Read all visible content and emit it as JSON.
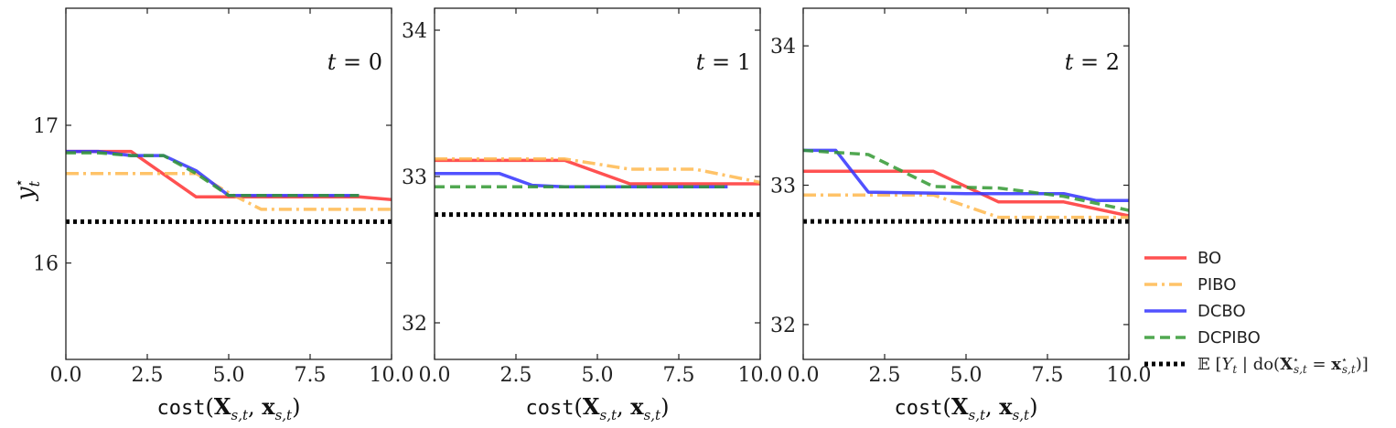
{
  "chart_data": [
    {
      "type": "line",
      "panel_label": "t = 0",
      "xlabel": "cost(X_{s,t}, x_{s,t})",
      "ylabel": "y_t*",
      "xlim": [
        0,
        10
      ],
      "ylim": [
        15.3,
        17.85
      ],
      "xticks": [
        0,
        2.5,
        5,
        7.5,
        10
      ],
      "xtick_labels": [
        "0.0",
        "2.5",
        "5.0",
        "7.5",
        "10.0"
      ],
      "yticks": [
        16,
        17
      ],
      "ytick_labels": [
        "16",
        "17"
      ],
      "grid": false,
      "series": [
        {
          "name": "BO",
          "x": [
            0,
            2,
            4,
            5,
            9,
            10
          ],
          "y": [
            16.81,
            16.81,
            16.48,
            16.48,
            16.48,
            16.46
          ]
        },
        {
          "name": "PIBO",
          "x": [
            0,
            4,
            5,
            6,
            10
          ],
          "y": [
            16.65,
            16.65,
            16.51,
            16.39,
            16.39
          ]
        },
        {
          "name": "DCBO",
          "x": [
            0,
            1,
            2,
            3,
            4,
            5,
            9
          ],
          "y": [
            16.81,
            16.81,
            16.78,
            16.78,
            16.67,
            16.49,
            16.49
          ]
        },
        {
          "name": "DCPIBO",
          "x": [
            0,
            1,
            2,
            3,
            4,
            5,
            9
          ],
          "y": [
            16.8,
            16.8,
            16.78,
            16.78,
            16.65,
            16.49,
            16.49
          ]
        },
        {
          "name": "E[Y_t | do(X*_{s,t} = x*_{s,t})]",
          "x": [
            0,
            10
          ],
          "y": [
            16.3,
            16.3
          ]
        }
      ]
    },
    {
      "type": "line",
      "panel_label": "t = 1",
      "xlabel": "cost(X_{s,t}, x_{s,t})",
      "ylabel": "",
      "xlim": [
        0,
        10
      ],
      "ylim": [
        31.75,
        34.15
      ],
      "xticks": [
        0,
        2.5,
        5,
        7.5,
        10
      ],
      "xtick_labels": [
        "0.0",
        "2.5",
        "5.0",
        "7.5",
        "10.0"
      ],
      "yticks": [
        32,
        33,
        34
      ],
      "ytick_labels": [
        "32",
        "33",
        "34"
      ],
      "grid": false,
      "series": [
        {
          "name": "BO",
          "x": [
            0,
            4,
            6,
            10
          ],
          "y": [
            33.11,
            33.11,
            32.95,
            32.95
          ]
        },
        {
          "name": "PIBO",
          "x": [
            0,
            4,
            6,
            8,
            10
          ],
          "y": [
            33.12,
            33.12,
            33.05,
            33.05,
            32.96
          ]
        },
        {
          "name": "DCBO",
          "x": [
            0,
            2,
            3,
            4,
            9
          ],
          "y": [
            33.02,
            33.02,
            32.94,
            32.93,
            32.93
          ]
        },
        {
          "name": "DCPIBO",
          "x": [
            0,
            9
          ],
          "y": [
            32.93,
            32.93
          ]
        },
        {
          "name": "E[Y_t | do(X*_{s,t} = x*_{s,t})]",
          "x": [
            0,
            10
          ],
          "y": [
            32.74,
            32.74
          ]
        }
      ]
    },
    {
      "type": "line",
      "panel_label": "t = 2",
      "xlabel": "cost(X_{s,t}, x_{s,t})",
      "ylabel": "",
      "xlim": [
        0,
        10
      ],
      "ylim": [
        31.75,
        34.27
      ],
      "xticks": [
        0,
        2.5,
        5,
        7.5,
        10
      ],
      "xtick_labels": [
        "0.0",
        "2.5",
        "5.0",
        "7.5",
        "10.0"
      ],
      "yticks": [
        32,
        33,
        34
      ],
      "ytick_labels": [
        "32",
        "33",
        "34"
      ],
      "grid": false,
      "series": [
        {
          "name": "BO",
          "x": [
            0,
            4,
            6,
            8,
            10
          ],
          "y": [
            33.1,
            33.1,
            32.88,
            32.88,
            32.78
          ]
        },
        {
          "name": "PIBO",
          "x": [
            0,
            4,
            6,
            10
          ],
          "y": [
            32.93,
            32.93,
            32.77,
            32.77
          ]
        },
        {
          "name": "DCBO",
          "x": [
            0,
            1,
            2,
            5,
            8,
            9,
            10
          ],
          "y": [
            33.25,
            33.25,
            32.95,
            32.94,
            32.94,
            32.89,
            32.89
          ]
        },
        {
          "name": "DCPIBO",
          "x": [
            0,
            2,
            4,
            6,
            8,
            10
          ],
          "y": [
            33.25,
            33.22,
            32.99,
            32.98,
            32.92,
            32.82
          ]
        },
        {
          "name": "E[Y_t | do(X*_{s,t} = x*_{s,t})]",
          "x": [
            0,
            10
          ],
          "y": [
            32.74,
            32.74
          ]
        }
      ]
    }
  ],
  "legend": {
    "placement": "lower-right-outside",
    "items": [
      {
        "label": "BO",
        "color": "#ff3333",
        "style": "solid"
      },
      {
        "label": "PIBO",
        "color": "#ffb84d",
        "style": "dashdot"
      },
      {
        "label": "DCBO",
        "color": "#3333ff",
        "style": "solid"
      },
      {
        "label": "DCPIBO",
        "color": "#339933",
        "style": "dashed"
      },
      {
        "label": "E[Y_t | do(X*_{s,t} = x*_{s,t})]",
        "color": "#000000",
        "style": "dotted"
      }
    ]
  },
  "colors": {
    "BO": "#ff3333",
    "PIBO": "#ffb84d",
    "DCBO": "#3333ff",
    "DCPIBO": "#339933",
    "optimum": "#000000"
  }
}
